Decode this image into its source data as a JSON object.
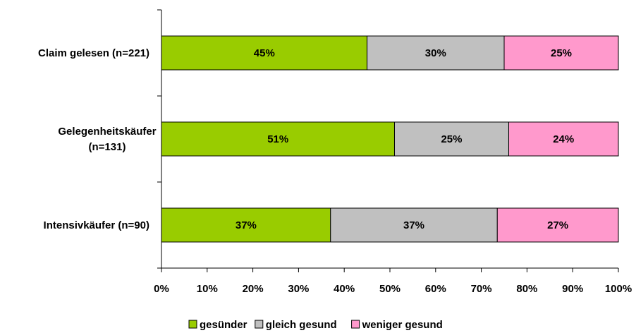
{
  "chart_data": {
    "type": "bar",
    "orientation": "horizontal",
    "stacked": true,
    "categories": [
      [
        "Claim gelesen (n=221)"
      ],
      [
        "Gelegenheitskäufer",
        "(n=131)"
      ],
      [
        "Intensivkäufer (n=90)"
      ]
    ],
    "series": [
      {
        "name": "gesünder",
        "color": "#99cc00",
        "values": [
          45,
          51,
          37
        ],
        "labels": [
          "45%",
          "51%",
          "37%"
        ]
      },
      {
        "name": "gleich gesund",
        "color": "#c0c0c0",
        "values": [
          30,
          25,
          36.5
        ],
        "labels": [
          "30%",
          "25%",
          "37%"
        ]
      },
      {
        "name": "weniger gesund",
        "color": "#ff99cc",
        "values": [
          25,
          24,
          26.5
        ],
        "labels": [
          "25%",
          "24%",
          "27%"
        ]
      }
    ],
    "xlim": [
      0,
      100
    ],
    "xticks": [
      "0%",
      "10%",
      "20%",
      "30%",
      "40%",
      "50%",
      "60%",
      "70%",
      "80%",
      "90%",
      "100%"
    ],
    "grid": false,
    "legend": "bottom"
  }
}
